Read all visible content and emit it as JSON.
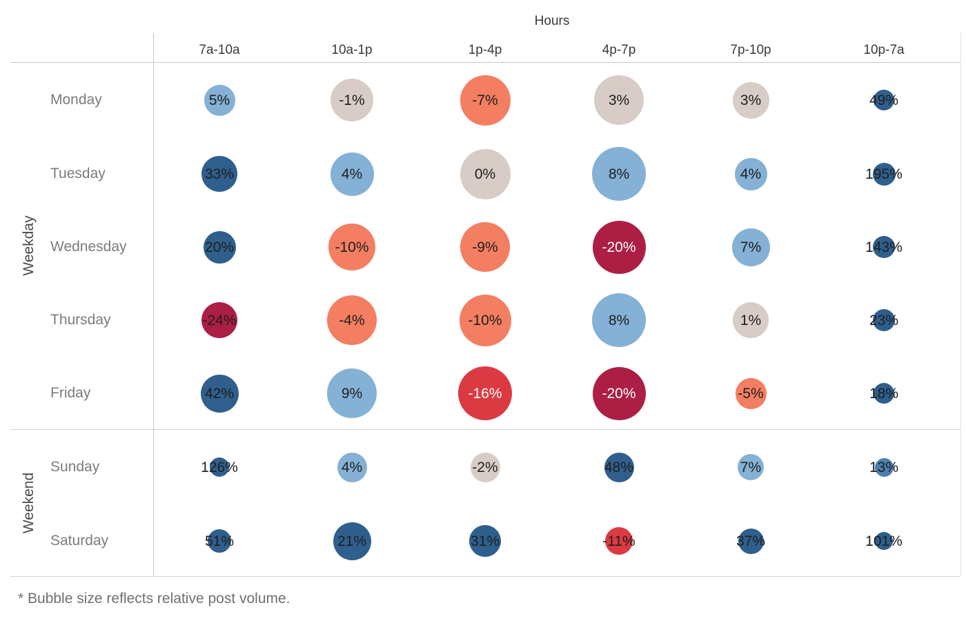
{
  "palette": {
    "dark_blue": "#2f5f8c",
    "med_blue": "#4d7fae",
    "light_blue": "#84b1d5",
    "beige": "#d8ccc7",
    "salmon": "#f47e62",
    "red": "#dc3a42",
    "crimson": "#ad1e44",
    "label_dark": "#1e1e1e",
    "label_white": "#ffffff",
    "axis_line": "#c6c6c6"
  },
  "chart_data": {
    "type": "heatmap",
    "variant": "bubble-matrix",
    "x_label": "Hours",
    "y_label_groups": [
      "Weekday",
      "Weekend"
    ],
    "x_categories": [
      "7a-10a",
      "10a-1p",
      "1p-4p",
      "4p-7p",
      "7p-10p",
      "10p-7a"
    ],
    "note": "* Bubble size reflects relative post volume.",
    "size_legend": "Bubble size reflects relative post volume",
    "groups": [
      {
        "label": "Weekday",
        "rows": [
          {
            "name": "Monday",
            "cells": [
              {
                "label": "5%",
                "value": 5,
                "color": "light_blue",
                "diameter": 45,
                "text_color": "dark"
              },
              {
                "label": "-1%",
                "value": -1,
                "color": "beige",
                "diameter": 62,
                "text_color": "dark"
              },
              {
                "label": "-7%",
                "value": -7,
                "color": "salmon",
                "diameter": 73,
                "text_color": "dark"
              },
              {
                "label": "3%",
                "value": 3,
                "color": "beige",
                "diameter": 72,
                "text_color": "dark"
              },
              {
                "label": "3%",
                "value": 3,
                "color": "beige",
                "diameter": 53,
                "text_color": "dark"
              },
              {
                "label": "49%",
                "value": 49,
                "color": "dark_blue",
                "diameter": 30,
                "text_color": "dark"
              }
            ]
          },
          {
            "name": "Tuesday",
            "cells": [
              {
                "label": "33%",
                "value": 33,
                "color": "dark_blue",
                "diameter": 52,
                "text_color": "dark"
              },
              {
                "label": "4%",
                "value": 4,
                "color": "light_blue",
                "diameter": 63,
                "text_color": "dark"
              },
              {
                "label": "0%",
                "value": 0,
                "color": "beige",
                "diameter": 73,
                "text_color": "dark"
              },
              {
                "label": "8%",
                "value": 8,
                "color": "light_blue",
                "diameter": 78,
                "text_color": "dark"
              },
              {
                "label": "4%",
                "value": 4,
                "color": "light_blue",
                "diameter": 47,
                "text_color": "dark"
              },
              {
                "label": "195%",
                "value": 195,
                "color": "dark_blue",
                "diameter": 33,
                "text_color": "dark"
              }
            ]
          },
          {
            "name": "Wednesday",
            "cells": [
              {
                "label": "20%",
                "value": 20,
                "color": "dark_blue",
                "diameter": 47,
                "text_color": "dark"
              },
              {
                "label": "-10%",
                "value": -10,
                "color": "salmon",
                "diameter": 68,
                "text_color": "dark"
              },
              {
                "label": "-9%",
                "value": -9,
                "color": "salmon",
                "diameter": 72,
                "text_color": "dark"
              },
              {
                "label": "-20%",
                "value": -20,
                "color": "crimson",
                "diameter": 77,
                "text_color": "white"
              },
              {
                "label": "7%",
                "value": 7,
                "color": "light_blue",
                "diameter": 55,
                "text_color": "dark"
              },
              {
                "label": "143%",
                "value": 143,
                "color": "dark_blue",
                "diameter": 32,
                "text_color": "dark"
              }
            ]
          },
          {
            "name": "Thursday",
            "cells": [
              {
                "label": "-24%",
                "value": -24,
                "color": "crimson",
                "diameter": 52,
                "text_color": "dark"
              },
              {
                "label": "-4%",
                "value": -4,
                "color": "salmon",
                "diameter": 72,
                "text_color": "dark"
              },
              {
                "label": "-10%",
                "value": -10,
                "color": "salmon",
                "diameter": 75,
                "text_color": "dark"
              },
              {
                "label": "8%",
                "value": 8,
                "color": "light_blue",
                "diameter": 78,
                "text_color": "dark"
              },
              {
                "label": "1%",
                "value": 1,
                "color": "beige",
                "diameter": 52,
                "text_color": "dark"
              },
              {
                "label": "23%",
                "value": 23,
                "color": "dark_blue",
                "diameter": 32,
                "text_color": "dark"
              }
            ]
          },
          {
            "name": "Friday",
            "cells": [
              {
                "label": "42%",
                "value": 42,
                "color": "dark_blue",
                "diameter": 55,
                "text_color": "dark"
              },
              {
                "label": "9%",
                "value": 9,
                "color": "light_blue",
                "diameter": 72,
                "text_color": "dark"
              },
              {
                "label": "-16%",
                "value": -16,
                "color": "red",
                "diameter": 78,
                "text_color": "white"
              },
              {
                "label": "-20%",
                "value": -20,
                "color": "crimson",
                "diameter": 77,
                "text_color": "white"
              },
              {
                "label": "-5%",
                "value": -5,
                "color": "salmon",
                "diameter": 45,
                "text_color": "dark"
              },
              {
                "label": "18%",
                "value": 18,
                "color": "dark_blue",
                "diameter": 30,
                "text_color": "dark"
              }
            ]
          }
        ]
      },
      {
        "label": "Weekend",
        "rows": [
          {
            "name": "Sunday",
            "cells": [
              {
                "label": "126%",
                "value": 126,
                "color": "dark_blue",
                "diameter": 28,
                "text_color": "dark"
              },
              {
                "label": "4%",
                "value": 4,
                "color": "light_blue",
                "diameter": 43,
                "text_color": "dark"
              },
              {
                "label": "-2%",
                "value": -2,
                "color": "beige",
                "diameter": 43,
                "text_color": "dark"
              },
              {
                "label": "48%",
                "value": 48,
                "color": "dark_blue",
                "diameter": 43,
                "text_color": "dark"
              },
              {
                "label": "7%",
                "value": 7,
                "color": "light_blue",
                "diameter": 38,
                "text_color": "dark"
              },
              {
                "label": "13%",
                "value": 13,
                "color": "med_blue",
                "diameter": 27,
                "text_color": "dark"
              }
            ]
          },
          {
            "name": "Saturday",
            "cells": [
              {
                "label": "51%",
                "value": 51,
                "color": "dark_blue",
                "diameter": 34,
                "text_color": "dark"
              },
              {
                "label": "21%",
                "value": 21,
                "color": "dark_blue",
                "diameter": 55,
                "text_color": "dark"
              },
              {
                "label": "31%",
                "value": 31,
                "color": "dark_blue",
                "diameter": 46,
                "text_color": "dark"
              },
              {
                "label": "-11%",
                "value": -11,
                "color": "red",
                "diameter": 40,
                "text_color": "dark"
              },
              {
                "label": "37%",
                "value": 37,
                "color": "dark_blue",
                "diameter": 37,
                "text_color": "dark"
              },
              {
                "label": "101%",
                "value": 101,
                "color": "dark_blue",
                "diameter": 26,
                "text_color": "dark"
              }
            ]
          }
        ]
      }
    ]
  }
}
